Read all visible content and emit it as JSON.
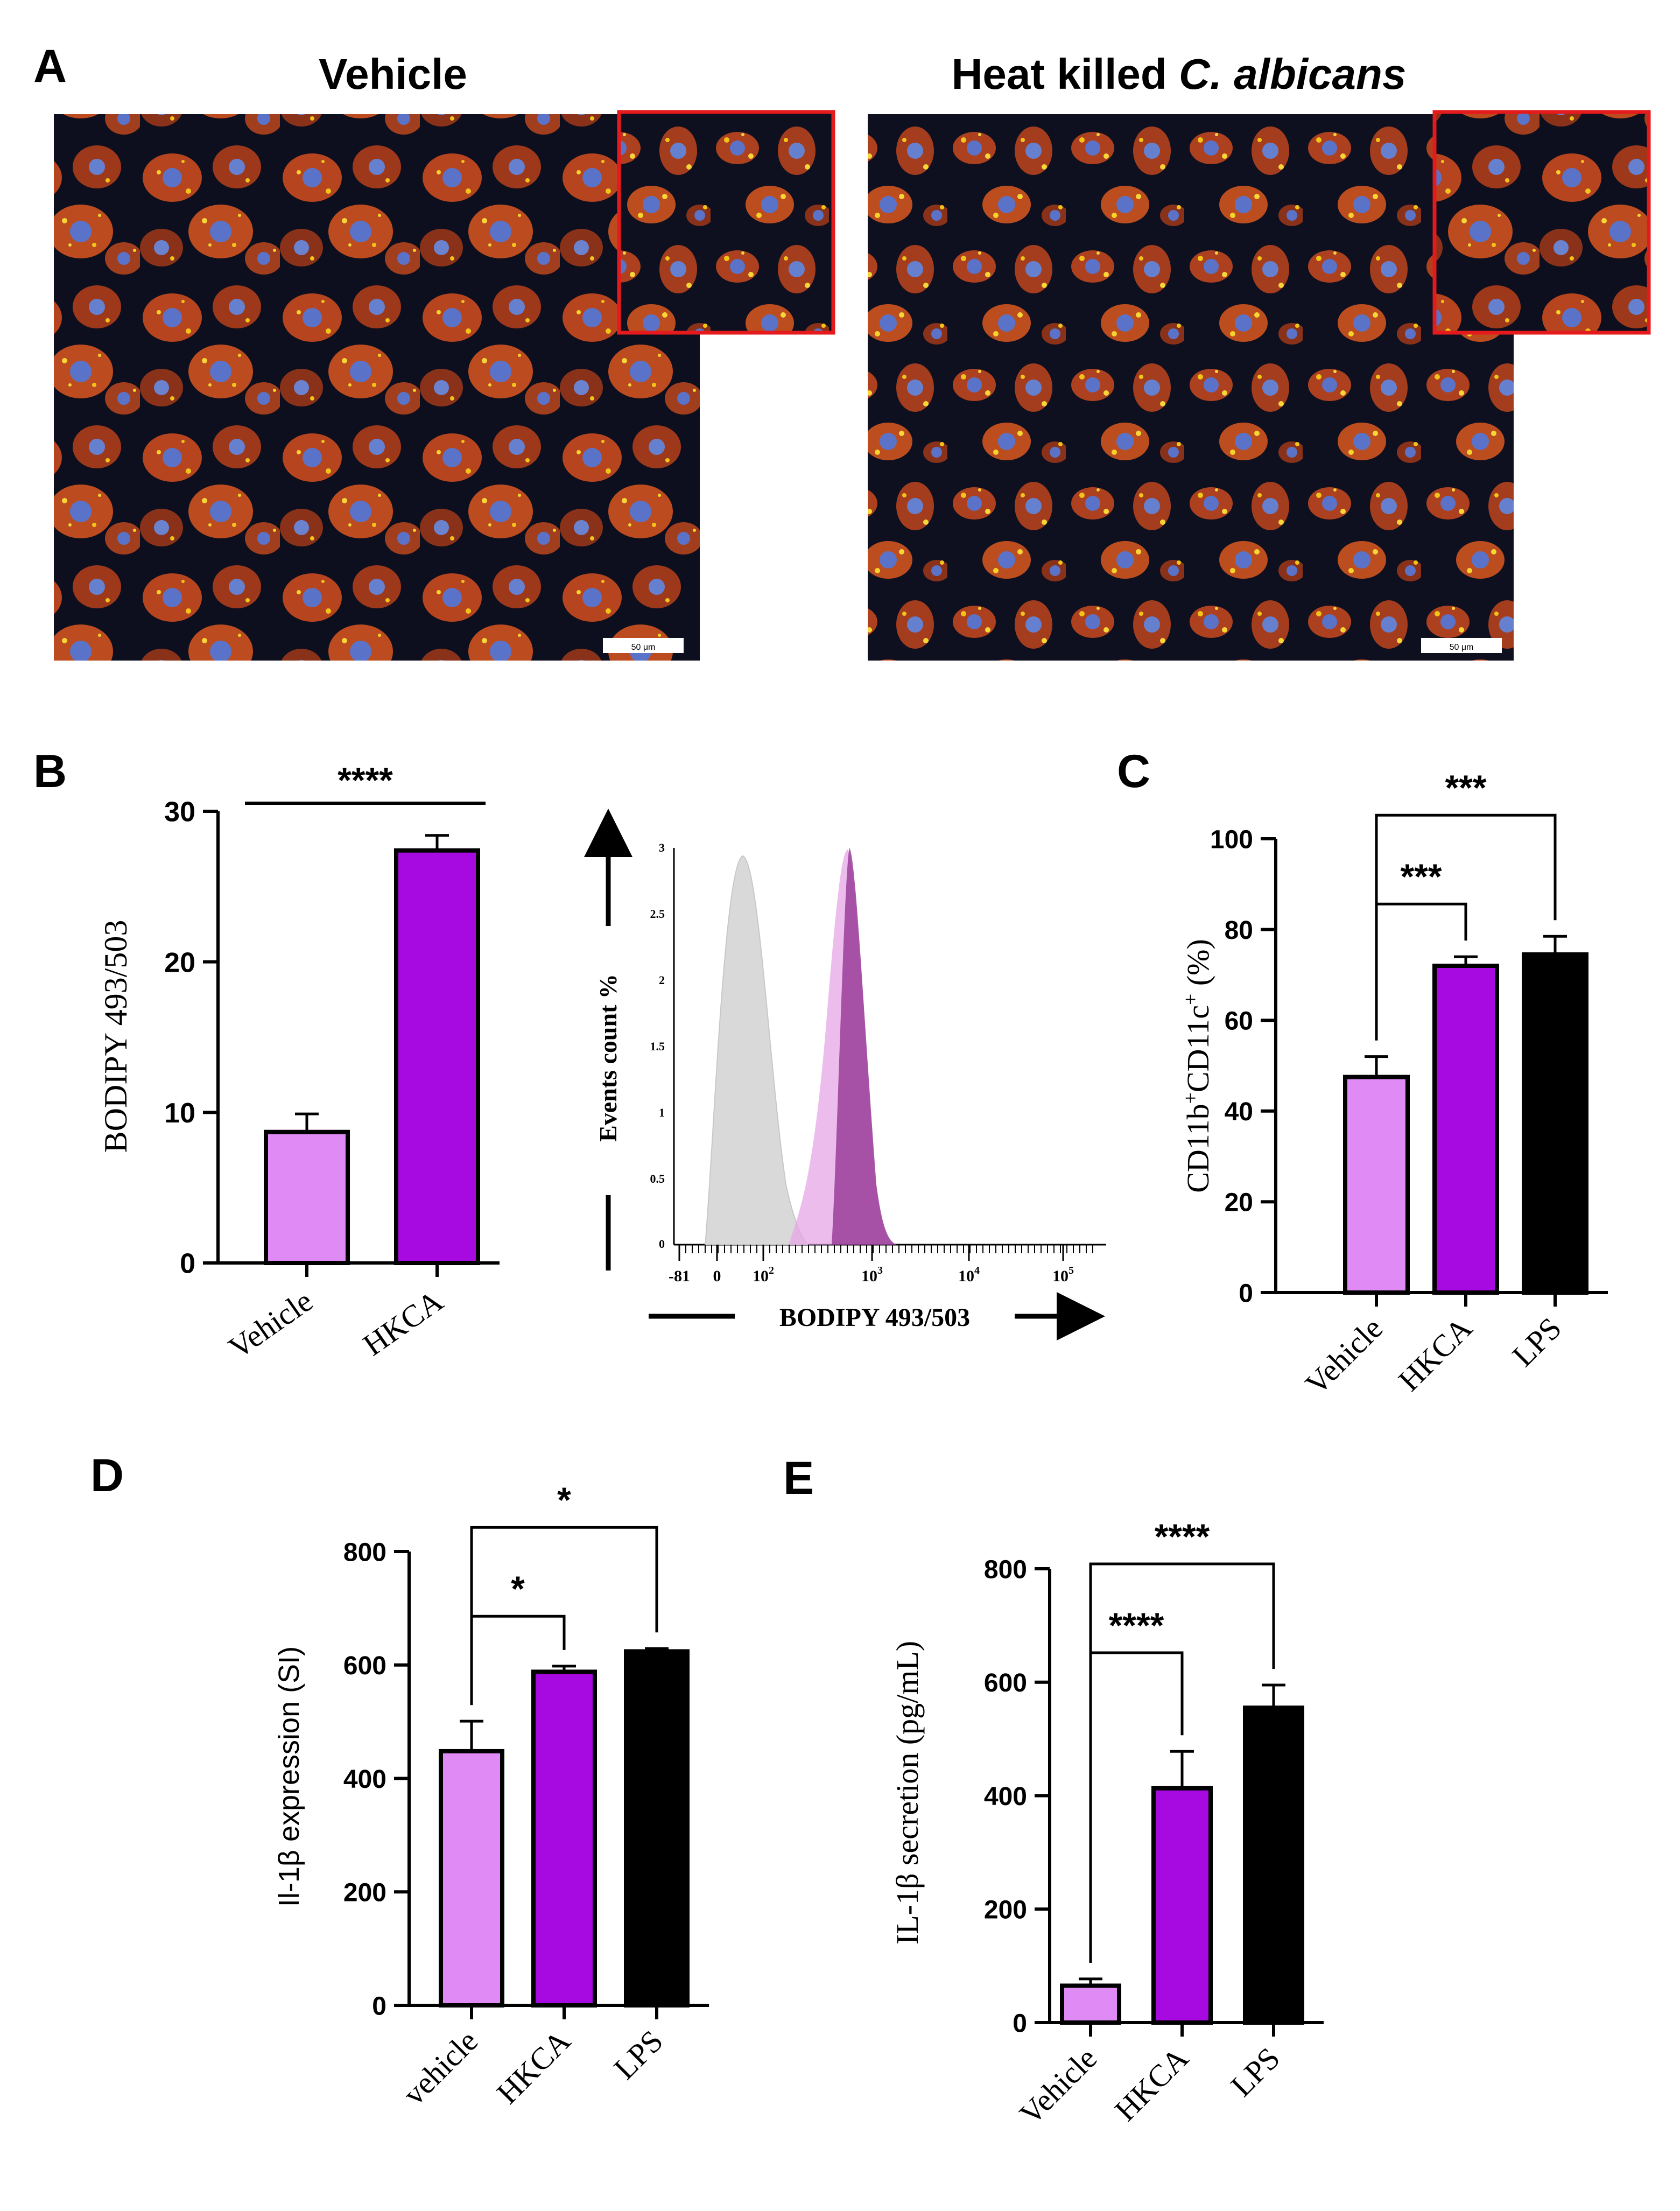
{
  "figure": {
    "panel_letters": [
      "A",
      "B",
      "C",
      "D",
      "E"
    ]
  },
  "panel_a": {
    "left_title": "Vehicle",
    "right_title_prefix": "Heat killed ",
    "right_title_italic": "C. albicans",
    "scale_bar_label": "50 μm",
    "colors": {
      "background": "#0d0f1e",
      "cell": "#c94a1e",
      "nucleus": "#5a73c9",
      "lipid": "#f2c41a",
      "inset_border": "#e41a1c"
    }
  },
  "panel_b_histogram": {
    "y_axis_label": "Events count %",
    "x_axis_label": "BODIPY 493/503",
    "y_ticks": [
      "3",
      "2.5",
      "2",
      "1.5",
      "1",
      "0.5",
      "0"
    ],
    "x_ticks": [
      "-81",
      "0",
      "10",
      "10",
      "10",
      "10"
    ],
    "x_tick_exponents": [
      "",
      "",
      "2",
      "3",
      "4",
      "5"
    ],
    "colors": {
      "vehicle": "#d9d9d9",
      "hkca_light": "#e6a6e6",
      "hkca_dark": "#9a3d9a"
    }
  },
  "chart_data": [
    {
      "panel": "B",
      "type": "bar",
      "categories": [
        "Vehicle",
        "HKCA"
      ],
      "values": [
        8.7,
        27.4
      ],
      "errors": [
        1.2,
        1.0
      ],
      "colors": [
        "#df8af5",
        "#a70ae0"
      ],
      "ylabel": "BODIPY 493/503",
      "ylim": [
        0,
        30
      ],
      "yticks": [
        0,
        10,
        20,
        30
      ],
      "significance": [
        {
          "from": 0,
          "to": 1,
          "label": "****",
          "style": "line"
        }
      ]
    },
    {
      "panel": "C",
      "type": "bar",
      "categories": [
        "Vehicle",
        "HKCA",
        "LPS"
      ],
      "values": [
        47.5,
        72.0,
        74.5
      ],
      "errors": [
        4.5,
        2.0,
        4.0
      ],
      "colors": [
        "#df8af5",
        "#a70ae0",
        "#000000"
      ],
      "ylabel": {
        "main": "CD11b",
        "sup1": "+",
        "mid": "CD11c",
        "sup2": "+",
        "unit": " (%)"
      },
      "ylim": [
        0,
        100
      ],
      "yticks": [
        0,
        20,
        40,
        60,
        80,
        100
      ],
      "significance": [
        {
          "from": 0,
          "to": 1,
          "label": "***",
          "style": "bracket"
        },
        {
          "from": 0,
          "to": 2,
          "label": "***",
          "style": "bracket"
        }
      ]
    },
    {
      "panel": "D",
      "type": "bar",
      "categories": [
        "vehicle",
        "HKCA",
        "LPS"
      ],
      "values": [
        448,
        588,
        624
      ],
      "errors": [
        53,
        10,
        5
      ],
      "colors": [
        "#df8af5",
        "#a70ae0",
        "#000000"
      ],
      "ylabel": "Il-1β  expression (SI)",
      "ylim": [
        0,
        800
      ],
      "yticks": [
        0,
        200,
        400,
        600,
        800
      ],
      "significance": [
        {
          "from": 0,
          "to": 1,
          "label": "*",
          "style": "bracket"
        },
        {
          "from": 0,
          "to": 2,
          "label": "*",
          "style": "bracket"
        }
      ]
    },
    {
      "panel": "E",
      "type": "bar",
      "categories": [
        "Vehicle",
        "HKCA",
        "LPS"
      ],
      "values": [
        65,
        413,
        555
      ],
      "errors": [
        12,
        65,
        40
      ],
      "colors": [
        "#df8af5",
        "#a70ae0",
        "#000000"
      ],
      "ylabel": "IL-1β secretion (pg/mL)",
      "ylim": [
        0,
        800
      ],
      "yticks": [
        0,
        200,
        400,
        600,
        800
      ],
      "significance": [
        {
          "from": 0,
          "to": 1,
          "label": "****",
          "style": "bracket"
        },
        {
          "from": 0,
          "to": 2,
          "label": "****",
          "style": "bracket"
        }
      ]
    }
  ]
}
